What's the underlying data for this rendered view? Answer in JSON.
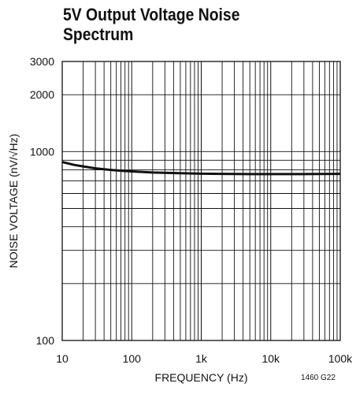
{
  "chart_data": {
    "type": "line",
    "title": [
      "5V Output Voltage Noise",
      "Spectrum"
    ],
    "xlabel": "FREQUENCY (Hz)",
    "ylabel": "NOISE VOLTAGE (nV/√Hz)",
    "xscale": "log",
    "yscale": "log",
    "xlim": [
      10,
      100000
    ],
    "ylim": [
      100,
      3000
    ],
    "grid": true,
    "xticks": [
      {
        "value": 10,
        "label": "10"
      },
      {
        "value": 100,
        "label": "100"
      },
      {
        "value": 1000,
        "label": "1k"
      },
      {
        "value": 10000,
        "label": "10k"
      },
      {
        "value": 100000,
        "label": "100k"
      }
    ],
    "yticks": [
      {
        "value": 100,
        "label": "100"
      },
      {
        "value": 1000,
        "label": "1000"
      },
      {
        "value": 2000,
        "label": "2000"
      },
      {
        "value": 3000,
        "label": "3000"
      }
    ],
    "series": [
      {
        "x": [
          10,
          15,
          20,
          30,
          50,
          70,
          100,
          200,
          500,
          1000,
          2000,
          5000,
          10000,
          20000,
          50000,
          100000
        ],
        "y": [
          880,
          850,
          835,
          815,
          800,
          792,
          785,
          775,
          768,
          764,
          762,
          760,
          760,
          760,
          761,
          762
        ]
      }
    ],
    "color": "#111111"
  },
  "figure_note": "1460 G22"
}
